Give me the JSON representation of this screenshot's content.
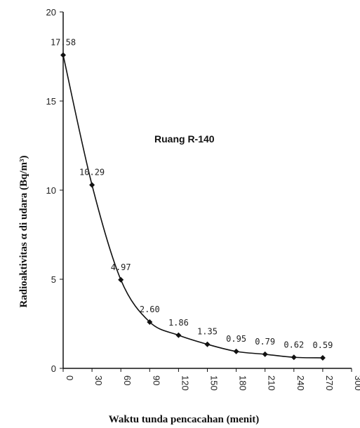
{
  "chart_data": {
    "type": "line",
    "title": "",
    "annotation": "Ruang R-140",
    "xlabel": "Waktu tunda pencacahan (menit)",
    "ylabel": "Radioaktivitas α di udara (Bq/m³)",
    "xlim": [
      0,
      300
    ],
    "ylim": [
      0,
      20
    ],
    "xticks": [
      0,
      30,
      60,
      90,
      120,
      150,
      180,
      210,
      240,
      270,
      300
    ],
    "yticks": [
      0,
      5,
      10,
      15,
      20
    ],
    "grid": false,
    "series": [
      {
        "x": [
          0,
          30,
          60,
          90,
          120,
          150,
          180,
          210,
          240,
          270
        ],
        "y": [
          17.58,
          10.29,
          4.97,
          2.6,
          1.86,
          1.35,
          0.95,
          0.79,
          0.62,
          0.59
        ],
        "labels": [
          "17.58",
          "10.29",
          "4.97",
          "2.60",
          "1.86",
          "1.35",
          "0.95",
          "0.79",
          "0.62",
          "0.59"
        ],
        "color": "#111111",
        "marker": "diamond"
      }
    ]
  }
}
